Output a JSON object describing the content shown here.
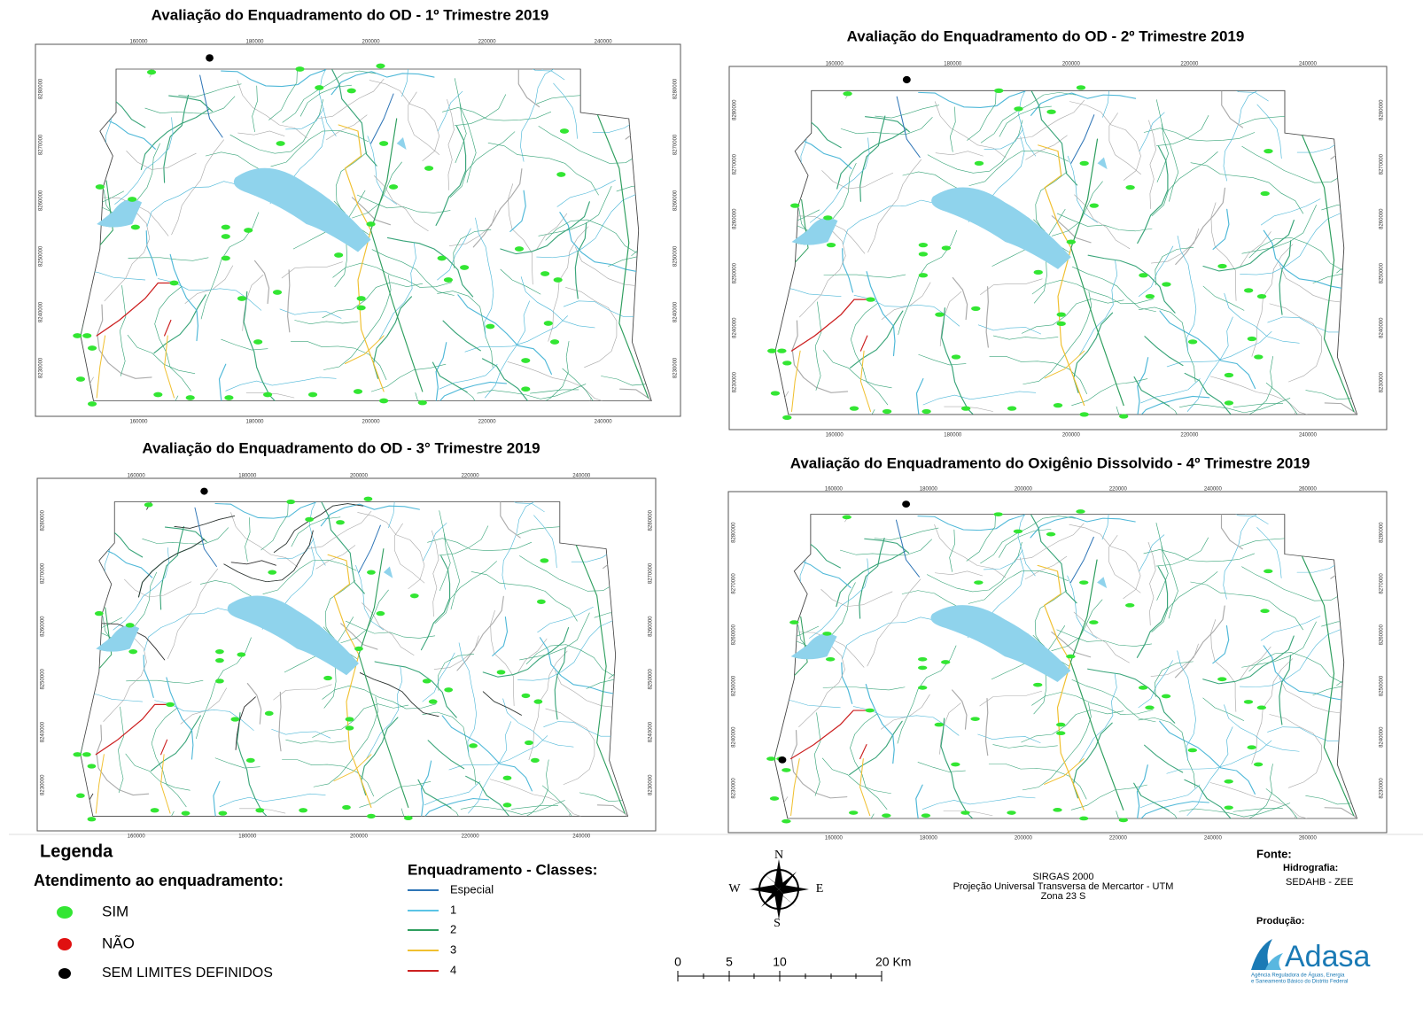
{
  "maps": [
    {
      "title": "Avaliação do Enquadramento do OD - 1º Trimestre 2019",
      "x_labels": [
        "160000",
        "180000",
        "200000",
        "220000",
        "240000"
      ],
      "y_labels": [
        "8280000",
        "8270000",
        "8260000",
        "8250000",
        "8240000",
        "8230000"
      ]
    },
    {
      "title": "Avaliação do Enquadramento do OD - 2º Trimestre 2019",
      "x_labels": [
        "160000",
        "180000",
        "200000",
        "220000",
        "240000"
      ],
      "y_labels": [
        "8280000",
        "8270000",
        "8260000",
        "8250000",
        "8240000",
        "8230000"
      ]
    },
    {
      "title": "Avaliação do Enquadramento do OD - 3° Trimestre 2019",
      "x_labels": [
        "160000",
        "180000",
        "200000",
        "220000",
        "240000"
      ],
      "y_labels": [
        "8280000",
        "8270000",
        "8260000",
        "8250000",
        "8240000",
        "8230000"
      ]
    },
    {
      "title": "Avaliação do Enquadramento do Oxigênio Dissolvido - 4º Trimestre 2019",
      "x_labels": [
        "160000",
        "180000",
        "200000",
        "220000",
        "240000",
        "260000"
      ],
      "y_labels": [
        "8280000",
        "8270000",
        "8260000",
        "8250000",
        "8240000",
        "8230000"
      ]
    }
  ],
  "legend": {
    "title": "Legenda",
    "compliance_title": "Atendimento ao enquadramento:",
    "compliance": [
      "SIM",
      "NÃO",
      "SEM LIMITES DEFINIDOS"
    ],
    "classes_title": "Enquadramento - Classes:",
    "classes": [
      "Especial",
      "1",
      "2",
      "3",
      "4"
    ]
  },
  "north": {
    "n": "N",
    "s": "S",
    "e": "E",
    "w": "W"
  },
  "projection": [
    "SIRGAS 2000",
    "Projeção Universal Transversa de Mercartor - UTM",
    "Zona 23 S"
  ],
  "scale": [
    "0",
    "5",
    "10",
    "20 Km"
  ],
  "source": {
    "title": "Fonte:",
    "hydro_title": "Hidrografia:",
    "hydro": "SEDAHB - ZEE",
    "production": "Produção:",
    "logo": "Adasa",
    "tagline": [
      "Agência Reguladora de Águas, Energia",
      "e Saneamento Básico do Distrito Federal"
    ]
  }
}
